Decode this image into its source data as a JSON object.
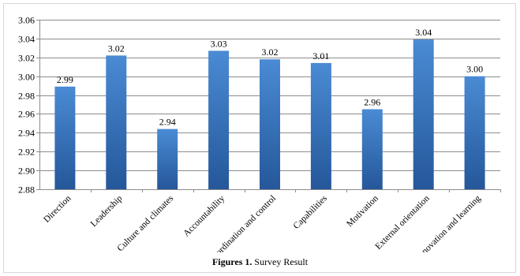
{
  "chart_data": {
    "type": "bar",
    "categories": [
      "Direction",
      "Leadership",
      "Culture and climates",
      "Accountability",
      "Coordination and control",
      "Capabilities",
      "Motivation",
      "External orientation",
      "Innovation and learning"
    ],
    "values": [
      2.989,
      3.022,
      2.944,
      3.027,
      3.018,
      3.014,
      2.965,
      3.039,
      3.0
    ],
    "value_labels": [
      "2.99",
      "3.02",
      "2.94",
      "3.03",
      "3.02",
      "3.01",
      "2.96",
      "3.04",
      "3.00"
    ],
    "ylim": [
      2.88,
      3.06
    ],
    "yticks": [
      "2.88",
      "2.90",
      "2.92",
      "2.94",
      "2.96",
      "2.98",
      "3.00",
      "3.02",
      "3.04",
      "3.06"
    ],
    "grid": true,
    "legend": "none",
    "bar_color_top": "#4a8bd4",
    "bar_color_bottom": "#25579a"
  },
  "caption": {
    "number": "Figures 1.",
    "text": " Survey Result"
  }
}
